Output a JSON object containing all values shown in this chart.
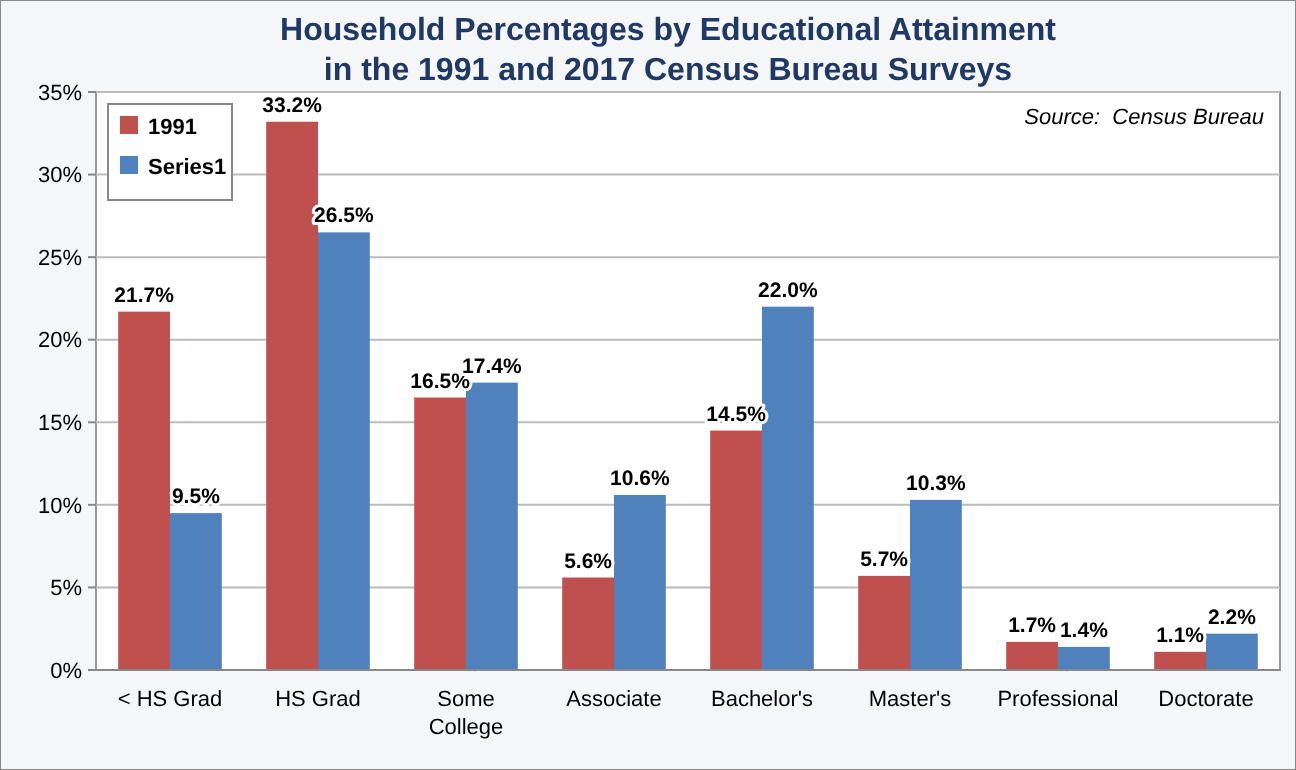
{
  "chart_data": {
    "type": "bar",
    "title": "Household Percentages by Educational Attainment\nin the 1991 and 2017 Census Bureau Surveys",
    "categories": [
      "< HS Grad",
      "HS Grad",
      "Some College",
      "Associate",
      "Bachelor's",
      "Master's",
      "Professional",
      "Doctorate"
    ],
    "series": [
      {
        "name": "1991",
        "color": "#c0504d",
        "values": [
          21.7,
          33.2,
          16.5,
          5.6,
          14.5,
          5.7,
          1.7,
          1.1
        ],
        "value_labels": [
          "21.7%",
          "33.2%",
          "16.5%",
          "5.6%",
          "14.5%",
          "5.7%",
          "1.7%",
          "1.1%"
        ]
      },
      {
        "name": "Series1",
        "color": "#4f81bd",
        "values": [
          9.5,
          26.5,
          17.4,
          10.6,
          22.0,
          10.3,
          1.4,
          2.2
        ],
        "value_labels": [
          "9.5%",
          "26.5%",
          "17.4%",
          "10.6%",
          "22.0%",
          "10.3%",
          "1.4%",
          "2.2%"
        ]
      }
    ],
    "ylim": [
      0,
      35
    ],
    "yticks": [
      {
        "value": 0,
        "label": "0%"
      },
      {
        "value": 5,
        "label": "5%"
      },
      {
        "value": 10,
        "label": "10%"
      },
      {
        "value": 15,
        "label": "15%"
      },
      {
        "value": 20,
        "label": "20%"
      },
      {
        "value": 25,
        "label": "25%"
      },
      {
        "value": 30,
        "label": "30%"
      },
      {
        "value": 35,
        "label": "35%"
      }
    ],
    "grid": "y",
    "legend": "top left",
    "annotations": [
      "Source:  Census Bureau"
    ]
  }
}
